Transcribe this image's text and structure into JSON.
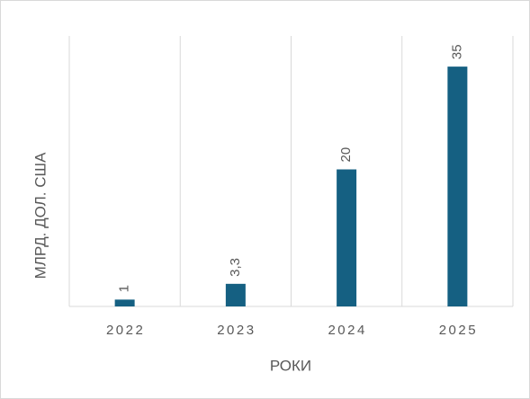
{
  "chart_data": {
    "type": "bar",
    "categories": [
      "2022",
      "2023",
      "2024",
      "2025"
    ],
    "values": [
      1,
      3.3,
      20,
      35
    ],
    "value_labels": [
      "1",
      "3,3",
      "20",
      "35"
    ],
    "color": "#156082",
    "ylim": [
      0,
      40
    ],
    "xlabel": "РОКИ",
    "ylabel": "МЛРД. ДОЛ. США",
    "grid": true
  }
}
